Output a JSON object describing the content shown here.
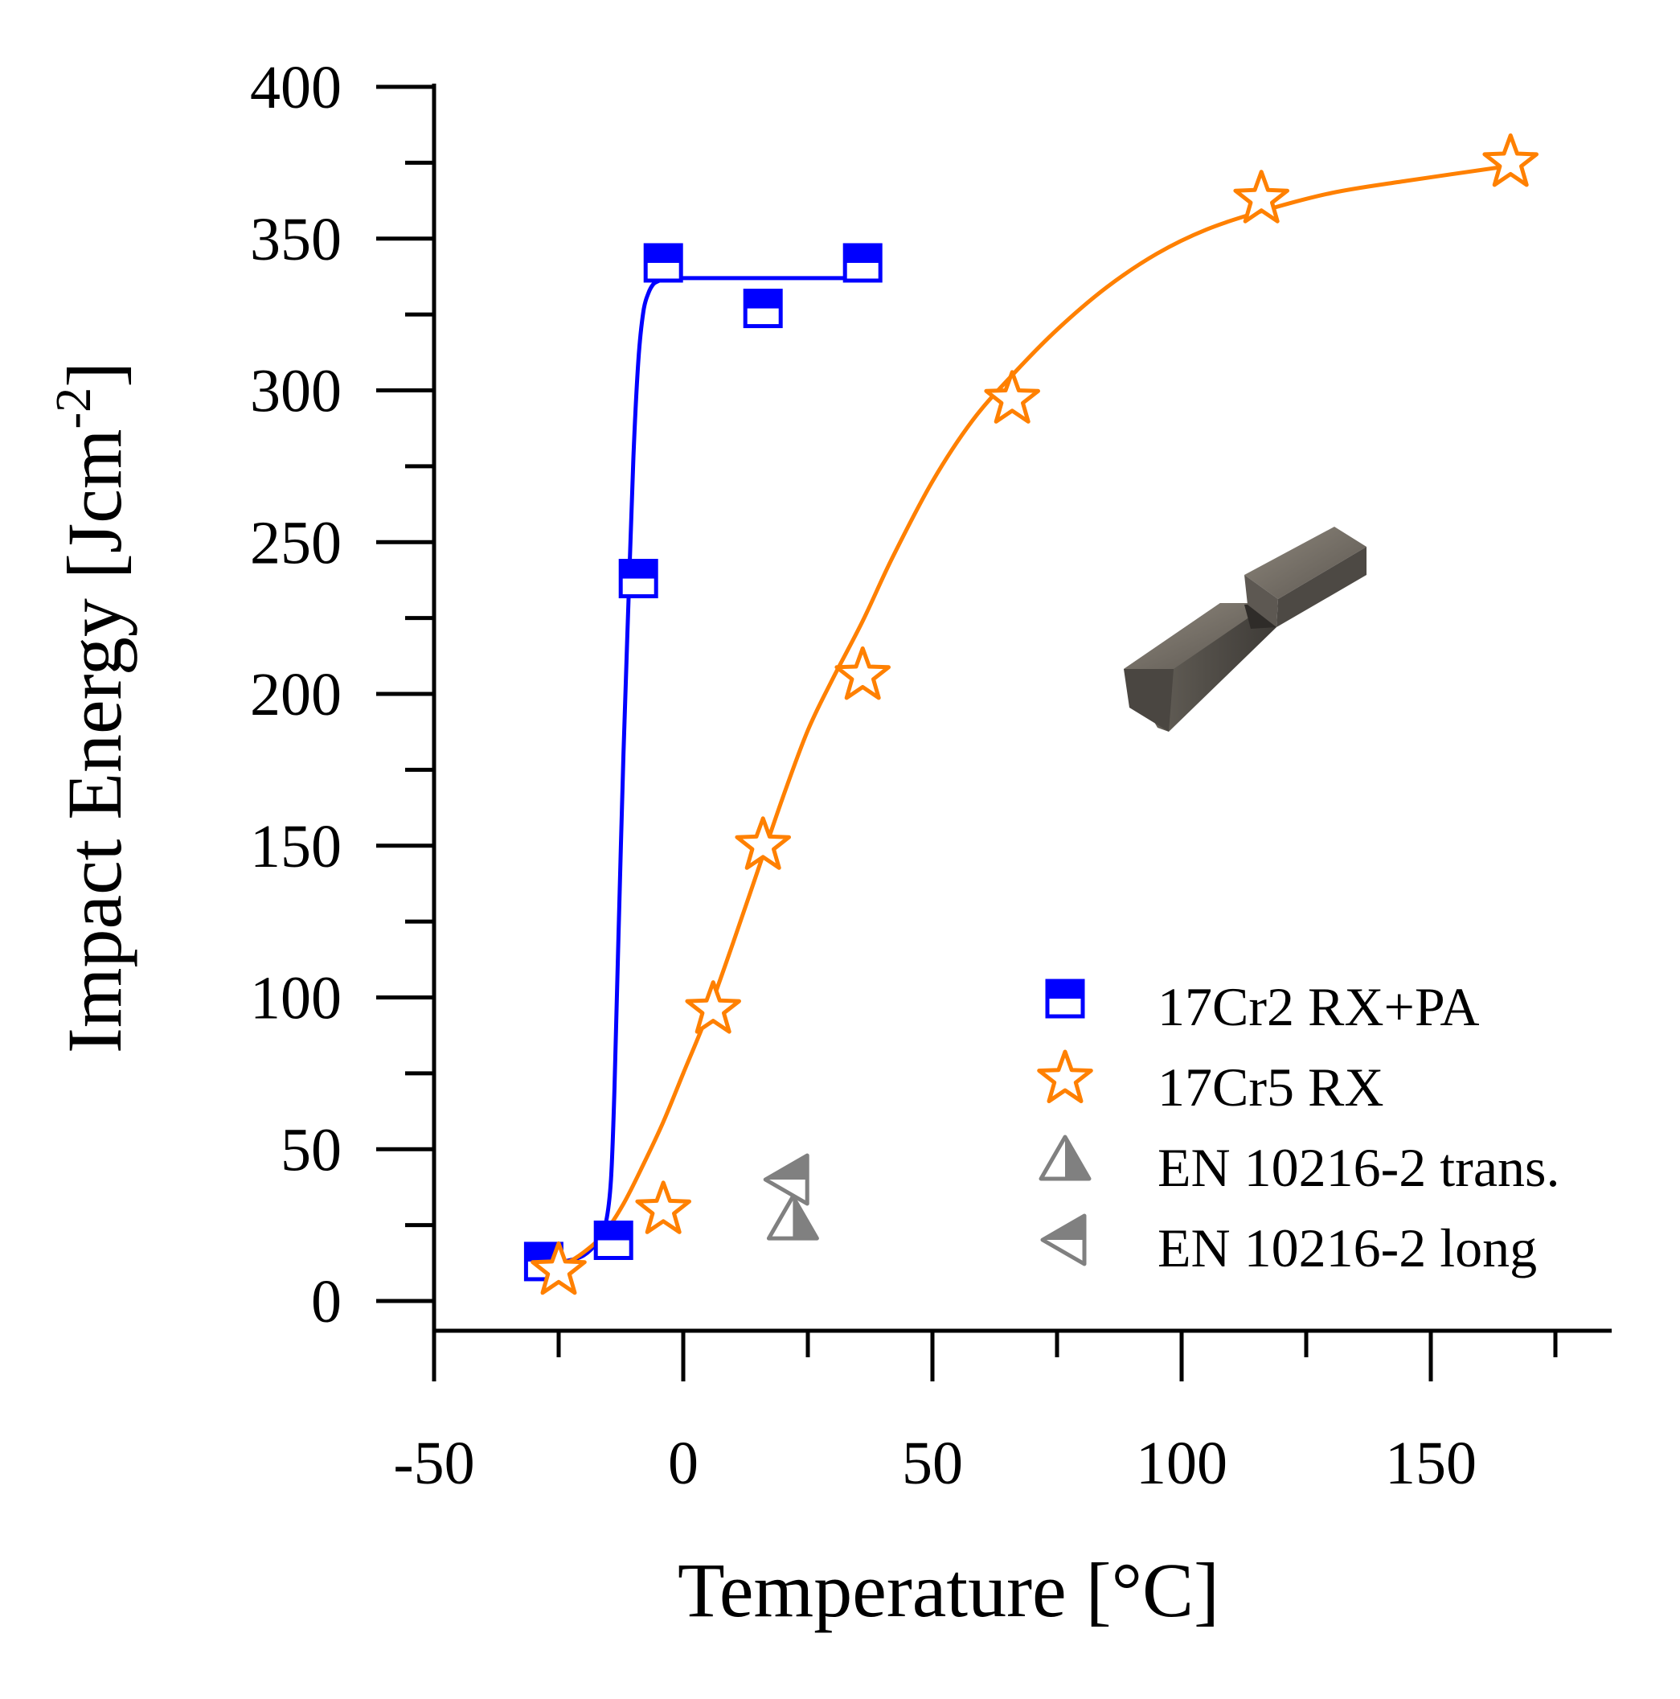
{
  "chart_data": {
    "type": "scatter",
    "title": "",
    "xlabel": "Temperature [°C]",
    "ylabel_main": "Impact Energy [Jcm",
    "ylabel_sup": "-2",
    "ylabel_close": "]",
    "xlim": [
      -50,
      187
    ],
    "ylim": [
      0,
      400
    ],
    "xticks": [
      -50,
      0,
      50,
      100,
      150
    ],
    "xticks_minor": [
      -25,
      25,
      75,
      125,
      175
    ],
    "yticks": [
      0,
      50,
      100,
      150,
      200,
      250,
      300,
      350,
      400
    ],
    "yticks_minor": [
      25,
      75,
      125,
      175,
      225,
      275,
      325,
      375
    ],
    "grid": false,
    "legend_position": "bottom-right",
    "series": [
      {
        "name": "17Cr2 RX+PA",
        "marker": "half-filled-square",
        "color": "#0000ff",
        "x": [
          -28,
          -14,
          -9,
          -4,
          16,
          36
        ],
        "y": [
          13,
          20,
          238,
          342,
          327,
          342
        ],
        "fit_x": [
          -28,
          -24,
          -20,
          -17,
          -15.5,
          -14.5,
          -13.8,
          -13,
          -12,
          -11,
          -10,
          -9,
          -8,
          -7,
          -6,
          -5,
          -4,
          -2,
          0,
          10,
          20,
          36
        ],
        "fit_y": [
          12,
          13,
          15,
          20,
          26,
          40,
          70,
          120,
          180,
          230,
          278,
          310,
          326,
          332,
          335,
          336,
          337,
          337,
          337,
          337,
          337,
          337
        ]
      },
      {
        "name": "17Cr5 RX",
        "marker": "open-star",
        "color": "#ff8000",
        "x": [
          -25,
          -4,
          6,
          16,
          36,
          66,
          116,
          166
        ],
        "y": [
          10,
          30,
          96,
          150,
          206,
          297,
          363,
          375
        ],
        "fit_x": [
          -28,
          -24,
          -20,
          -16,
          -12,
          -8,
          -4,
          0,
          5,
          10,
          15,
          20,
          25,
          30,
          36,
          42,
          50,
          58,
          66,
          75,
          85,
          95,
          105,
          116,
          130,
          145,
          166
        ],
        "fit_y": [
          10,
          12,
          16,
          22,
          32,
          45,
          59,
          75,
          95,
          118,
          142,
          166,
          188,
          205,
          224,
          245,
          270,
          290,
          305,
          320,
          334,
          345,
          353,
          359,
          365,
          369,
          374
        ]
      },
      {
        "name": "EN 10216-2 trans.",
        "marker": "half-filled-triangle-up",
        "color": "#808080",
        "x": [
          22
        ],
        "y": [
          27
        ]
      },
      {
        "name": "EN 10216-2 long",
        "marker": "half-filled-triangle-left",
        "color": "#808080",
        "x": [
          21
        ],
        "y": [
          40
        ]
      }
    ]
  },
  "inset_image": {
    "description_icon": "notched-bar-specimen-icon"
  }
}
